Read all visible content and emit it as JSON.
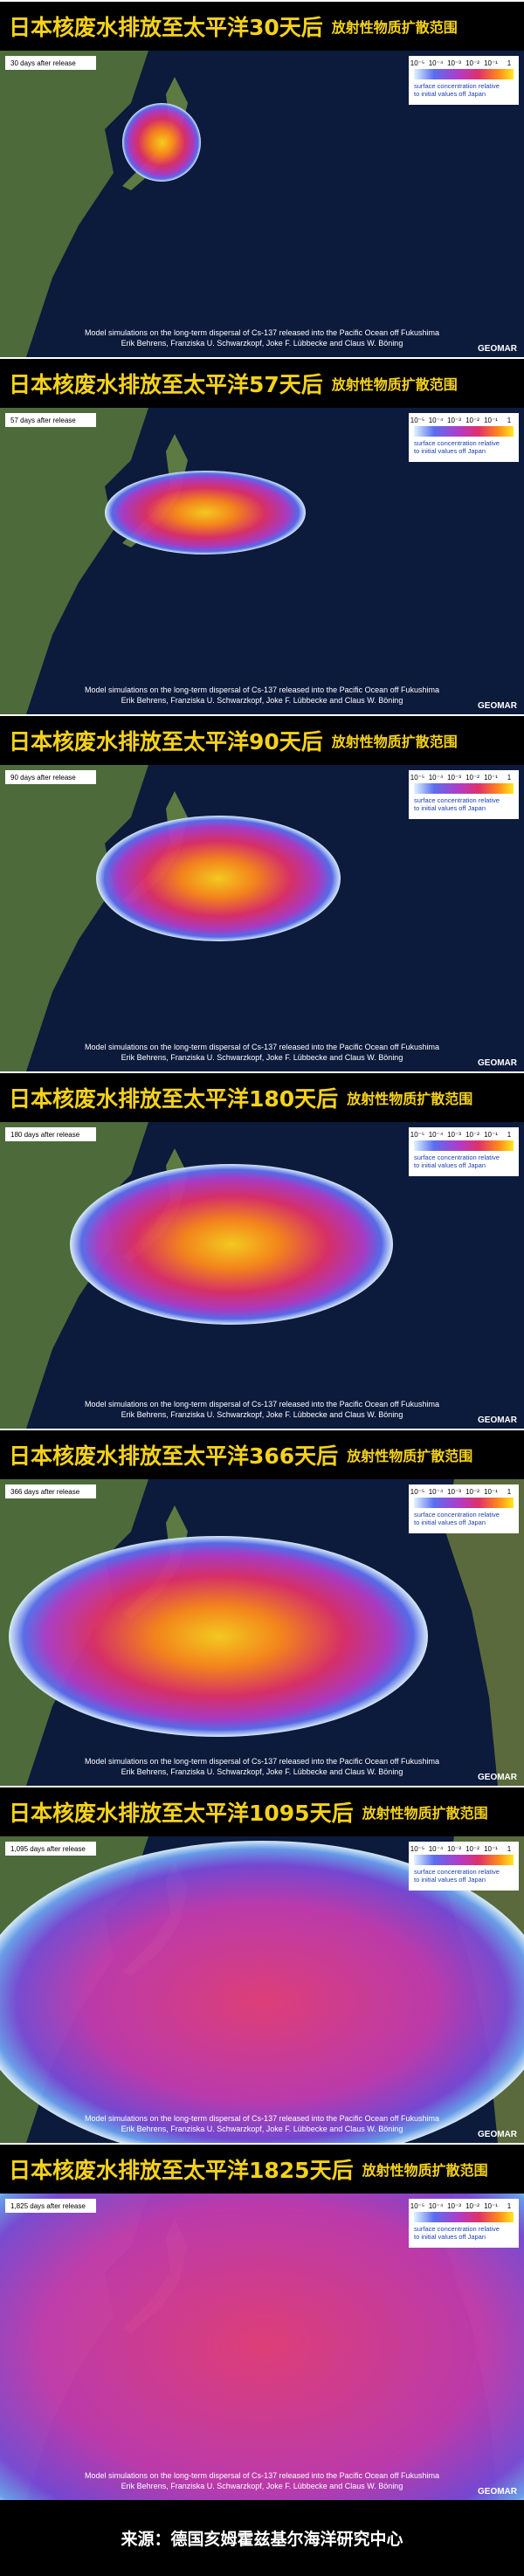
{
  "common": {
    "subtitle": "放射性物质扩散范围",
    "colorbar_ticks": [
      "10⁻⁵",
      "10⁻⁴",
      "10⁻³",
      "10⁻²",
      "10⁻¹",
      "1"
    ],
    "colorbar_label": [
      "surface concentration relative",
      "to initial values off Japan"
    ],
    "caption": [
      "Model simulations on the long-term dispersal of Cs-137 released into the Pacific Ocean off Fukushima",
      "Erik Behrens, Franziska U. Schwarzkopf, Joke F. Lübbecke and Claus W. Böning"
    ],
    "logo": "GEOMAR"
  },
  "panels": [
    {
      "title": "日本核废水排放至太平洋30天后",
      "day_label": "30 days after release"
    },
    {
      "title": "日本核废水排放至太平洋57天后",
      "day_label": "57 days after release"
    },
    {
      "title": "日本核废水排放至太平洋90天后",
      "day_label": "90 days after release"
    },
    {
      "title": "日本核废水排放至太平洋180天后",
      "day_label": "180 days after release"
    },
    {
      "title": "日本核废水排放至太平洋366天后",
      "day_label": "366 days after release"
    },
    {
      "title": "日本核废水排放至太平洋1095天后",
      "day_label": "1,095 days after release"
    },
    {
      "title": "日本核废水排放至太平洋1825天后",
      "day_label": "1,825 days after release"
    }
  ],
  "footer": "来源：德国亥姆霍兹基尔海洋研究中心"
}
